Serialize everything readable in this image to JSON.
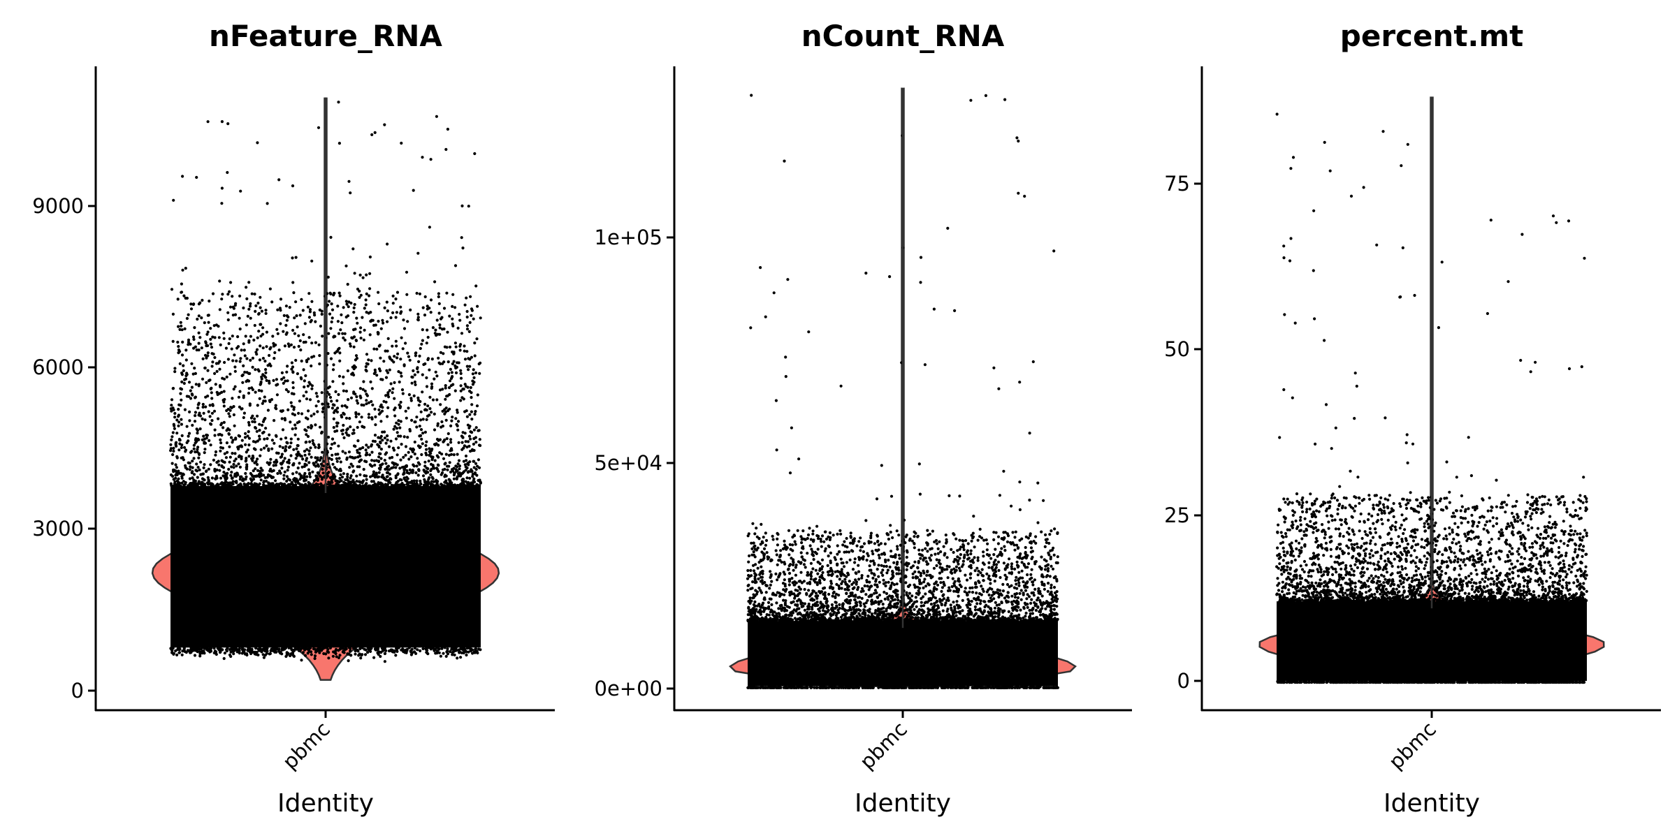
{
  "figure": {
    "background": "#ffffff",
    "violin_fill": "#F8766D",
    "violin_outline": "#333333",
    "point_color": "#000000"
  },
  "chart_data": [
    {
      "type": "violin",
      "title": "nFeature_RNA",
      "xlabel": "Identity",
      "ylabel": "",
      "categories": [
        "pbmc"
      ],
      "yticks": [
        0,
        3000,
        6000,
        9000
      ],
      "ytick_labels": [
        "0",
        "3000",
        "6000",
        "9000"
      ],
      "ylim": [
        -400,
        11700
      ],
      "summary": {
        "min": 200,
        "max": 11000,
        "mode": 2200,
        "dense_low": 800,
        "dense_high": 3800,
        "sparse_high": 7400
      },
      "grid": false,
      "legend": "none"
    },
    {
      "type": "violin",
      "title": "nCount_RNA",
      "xlabel": "Identity",
      "ylabel": "",
      "categories": [
        "pbmc"
      ],
      "yticks": [
        0,
        50000,
        100000
      ],
      "ytick_labels": [
        "0e+00",
        "5e+04",
        "1e+05"
      ],
      "ylim": [
        -4500,
        140000
      ],
      "summary": {
        "min": 500,
        "max": 133000,
        "mode": 4500,
        "dense_low": 500,
        "dense_high": 15000,
        "sparse_high": 35000
      },
      "grid": false,
      "legend": "none"
    },
    {
      "type": "violin",
      "title": "percent.mt",
      "xlabel": "Identity",
      "ylabel": "",
      "categories": [
        "pbmc"
      ],
      "yticks": [
        0,
        25,
        50,
        75
      ],
      "ytick_labels": [
        "0",
        "25",
        "50",
        "75"
      ],
      "ylim": [
        -3,
        92
      ],
      "summary": {
        "min": 0,
        "max": 88,
        "mode": 5.5,
        "dense_low": 0,
        "dense_high": 12,
        "sparse_high": 28
      },
      "grid": false,
      "legend": "none"
    }
  ],
  "panels": [
    {
      "title": "nFeature_RNA",
      "xlabel": "Identity",
      "category": "pbmc",
      "ticks": [
        {
          "label": "0"
        },
        {
          "label": "3000"
        },
        {
          "label": "6000"
        },
        {
          "label": "9000"
        }
      ]
    },
    {
      "title": "nCount_RNA",
      "xlabel": "Identity",
      "category": "pbmc",
      "ticks": [
        {
          "label": "0e+00"
        },
        {
          "label": "5e+04"
        },
        {
          "label": "1e+05"
        }
      ]
    },
    {
      "title": "percent.mt",
      "xlabel": "Identity",
      "category": "pbmc",
      "ticks": [
        {
          "label": "0"
        },
        {
          "label": "25"
        },
        {
          "label": "50"
        },
        {
          "label": "75"
        }
      ]
    }
  ]
}
